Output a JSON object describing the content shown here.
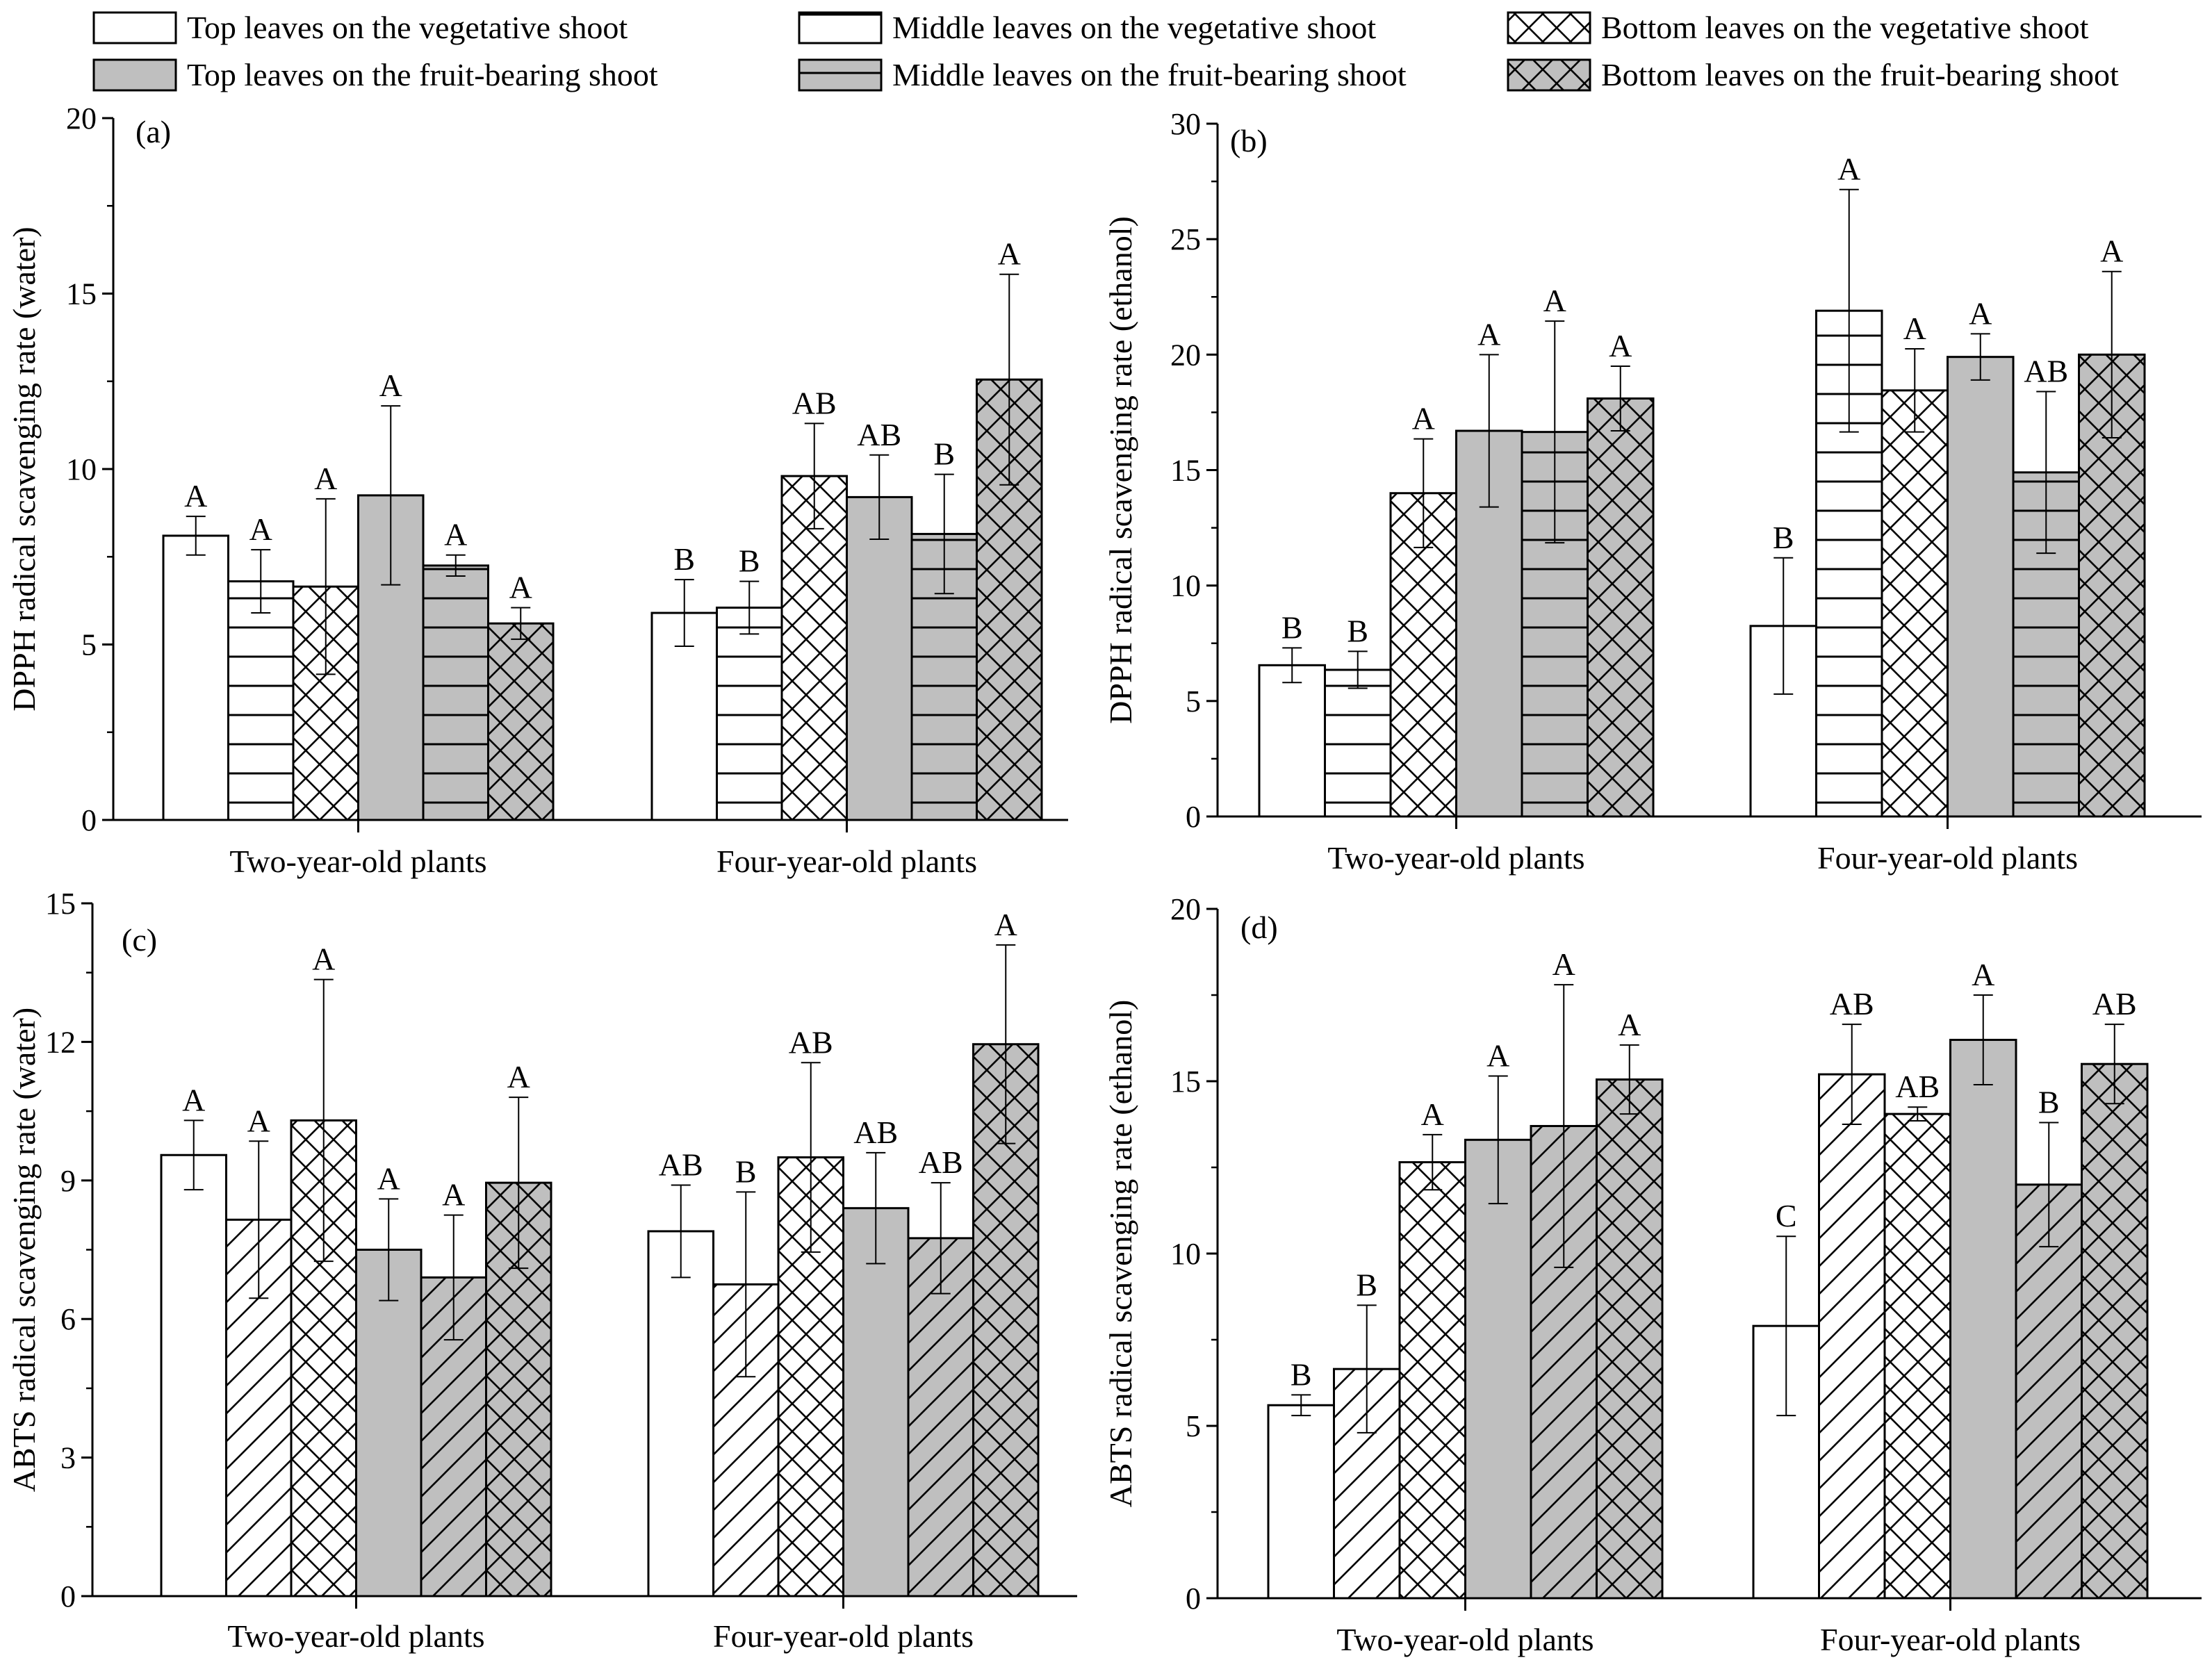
{
  "legend": [
    {
      "label": "Top leaves on the vegetative shoot",
      "fill": "#ffffff",
      "pattern": "none"
    },
    {
      "label": "Middle leaves on the vegetative shoot",
      "fill": "#ffffff",
      "pattern": "hlines"
    },
    {
      "label": "Bottom leaves on the vegetative shoot",
      "fill": "#ffffff",
      "pattern": "cross"
    },
    {
      "label": "Top leaves on the fruit-bearing shoot",
      "fill": "#bfbfbf",
      "pattern": "none"
    },
    {
      "label": "Middle leaves on the fruit-bearing shoot",
      "fill": "#bfbfbf",
      "pattern": "hlines"
    },
    {
      "label": "Bottom leaves on the fruit-bearing shoot",
      "fill": "#bfbfbf",
      "pattern": "cross"
    }
  ],
  "colors": {
    "gray_fill": "#bfbfbf",
    "white_fill": "#ffffff",
    "stroke": "#000000"
  },
  "chart_data": [
    {
      "id": "a",
      "type": "bar",
      "tag": "(a)",
      "title": "",
      "xlabel": "",
      "ylabel": "DPPH radical scavenging rate (water)",
      "ylim": [
        0,
        20
      ],
      "yticks": [
        0,
        5,
        10,
        15,
        20
      ],
      "categories": [
        "Two-year-old plants",
        "Four-year-old plants"
      ],
      "middle_pattern": "hlines",
      "series": [
        {
          "name": "Top leaves on the vegetative shoot",
          "values": [
            8.1,
            5.9
          ],
          "errors": [
            0.55,
            0.95
          ],
          "sig": [
            "A",
            "B"
          ]
        },
        {
          "name": "Middle leaves on the vegetative shoot",
          "values": [
            6.8,
            6.05
          ],
          "errors": [
            0.9,
            0.75
          ],
          "sig": [
            "A",
            "B"
          ]
        },
        {
          "name": "Bottom leaves on the vegetative shoot",
          "values": [
            6.65,
            9.8
          ],
          "errors": [
            2.5,
            1.5
          ],
          "sig": [
            "A",
            "AB"
          ]
        },
        {
          "name": "Top leaves on the fruit-bearing shoot",
          "values": [
            9.25,
            9.2
          ],
          "errors": [
            2.55,
            1.2
          ],
          "sig": [
            "A",
            "AB"
          ]
        },
        {
          "name": "Middle leaves on the fruit-bearing shoot",
          "values": [
            7.25,
            8.15
          ],
          "errors": [
            0.3,
            1.7
          ],
          "sig": [
            "A",
            "B"
          ]
        },
        {
          "name": "Bottom leaves on the fruit-bearing shoot",
          "values": [
            5.6,
            12.55
          ],
          "errors": [
            0.45,
            3.0
          ],
          "sig": [
            "A",
            "A"
          ]
        }
      ]
    },
    {
      "id": "b",
      "type": "bar",
      "tag": "(b)",
      "title": "",
      "xlabel": "",
      "ylabel": "DPPH radical scavenging rate (ethanol)",
      "ylim": [
        0,
        30
      ],
      "yticks": [
        0,
        5,
        10,
        15,
        20,
        25,
        30
      ],
      "categories": [
        "Two-year-old plants",
        "Four-year-old plants"
      ],
      "middle_pattern": "hlines",
      "series": [
        {
          "name": "Top leaves on the vegetative shoot",
          "values": [
            6.55,
            8.25
          ],
          "errors": [
            0.75,
            2.95
          ],
          "sig": [
            "B",
            "B"
          ]
        },
        {
          "name": "Middle leaves on the vegetative shoot",
          "values": [
            6.35,
            21.9
          ],
          "errors": [
            0.8,
            5.25
          ],
          "sig": [
            "B",
            "A"
          ]
        },
        {
          "name": "Bottom leaves on the vegetative shoot",
          "values": [
            14.0,
            18.45
          ],
          "errors": [
            2.35,
            1.8
          ],
          "sig": [
            "A",
            "A"
          ]
        },
        {
          "name": "Top leaves on the fruit-bearing shoot",
          "values": [
            16.7,
            19.9
          ],
          "errors": [
            3.3,
            1.0
          ],
          "sig": [
            "A",
            "A"
          ]
        },
        {
          "name": "Middle leaves on the fruit-bearing shoot",
          "values": [
            16.65,
            14.9
          ],
          "errors": [
            4.8,
            3.5
          ],
          "sig": [
            "A",
            "AB"
          ]
        },
        {
          "name": "Bottom leaves on the fruit-bearing shoot",
          "values": [
            18.1,
            20.0
          ],
          "errors": [
            1.4,
            3.6
          ],
          "sig": [
            "A",
            "A"
          ]
        }
      ]
    },
    {
      "id": "c",
      "type": "bar",
      "tag": "(c)",
      "title": "",
      "xlabel": "",
      "ylabel": "ABTS radical scavenging rate (water)",
      "ylim": [
        0,
        15
      ],
      "yticks": [
        0,
        3,
        6,
        9,
        12,
        15
      ],
      "categories": [
        "Two-year-old plants",
        "Four-year-old plants"
      ],
      "middle_pattern": "diag",
      "series": [
        {
          "name": "Top leaves on the vegetative shoot",
          "values": [
            9.55,
            7.9
          ],
          "errors": [
            0.75,
            1.0
          ],
          "sig": [
            "A",
            "AB"
          ]
        },
        {
          "name": "Middle leaves on the vegetative shoot",
          "values": [
            8.15,
            6.75
          ],
          "errors": [
            1.7,
            2.0
          ],
          "sig": [
            "A",
            "B"
          ]
        },
        {
          "name": "Bottom leaves on the vegetative shoot",
          "values": [
            10.3,
            9.5
          ],
          "errors": [
            3.05,
            2.05
          ],
          "sig": [
            "A",
            "AB"
          ]
        },
        {
          "name": "Top leaves on the fruit-bearing shoot",
          "values": [
            7.5,
            8.4
          ],
          "errors": [
            1.1,
            1.2
          ],
          "sig": [
            "A",
            "AB"
          ]
        },
        {
          "name": "Middle leaves on the fruit-bearing shoot",
          "values": [
            6.9,
            7.75
          ],
          "errors": [
            1.35,
            1.2
          ],
          "sig": [
            "A",
            "AB"
          ]
        },
        {
          "name": "Bottom leaves on the fruit-bearing shoot",
          "values": [
            8.95,
            11.95
          ],
          "errors": [
            1.85,
            2.15
          ],
          "sig": [
            "A",
            "A"
          ]
        }
      ]
    },
    {
      "id": "d",
      "type": "bar",
      "tag": "(d)",
      "title": "",
      "xlabel": "",
      "ylabel": "ABTS radical scavenging rate (ethanol)",
      "ylim": [
        0,
        20
      ],
      "yticks": [
        0,
        5,
        10,
        15,
        20
      ],
      "categories": [
        "Two-year-old plants",
        "Four-year-old plants"
      ],
      "middle_pattern": "diag",
      "series": [
        {
          "name": "Top leaves on the vegetative shoot",
          "values": [
            5.6,
            7.9
          ],
          "errors": [
            0.3,
            2.6
          ],
          "sig": [
            "B",
            "C"
          ]
        },
        {
          "name": "Middle leaves on the vegetative shoot",
          "values": [
            6.65,
            15.2
          ],
          "errors": [
            1.85,
            1.45
          ],
          "sig": [
            "B",
            "AB"
          ]
        },
        {
          "name": "Bottom leaves on the vegetative shoot",
          "values": [
            12.65,
            14.05
          ],
          "errors": [
            0.8,
            0.2
          ],
          "sig": [
            "A",
            "AB"
          ]
        },
        {
          "name": "Top leaves on the fruit-bearing shoot",
          "values": [
            13.3,
            16.2
          ],
          "errors": [
            1.85,
            1.3
          ],
          "sig": [
            "A",
            "A"
          ]
        },
        {
          "name": "Middle leaves on the fruit-bearing shoot",
          "values": [
            13.7,
            12.0
          ],
          "errors": [
            4.1,
            1.8
          ],
          "sig": [
            "A",
            "B"
          ]
        },
        {
          "name": "Bottom leaves on the fruit-bearing shoot",
          "values": [
            15.05,
            15.5
          ],
          "errors": [
            1.0,
            1.15
          ],
          "sig": [
            "A",
            "AB"
          ]
        }
      ]
    }
  ]
}
